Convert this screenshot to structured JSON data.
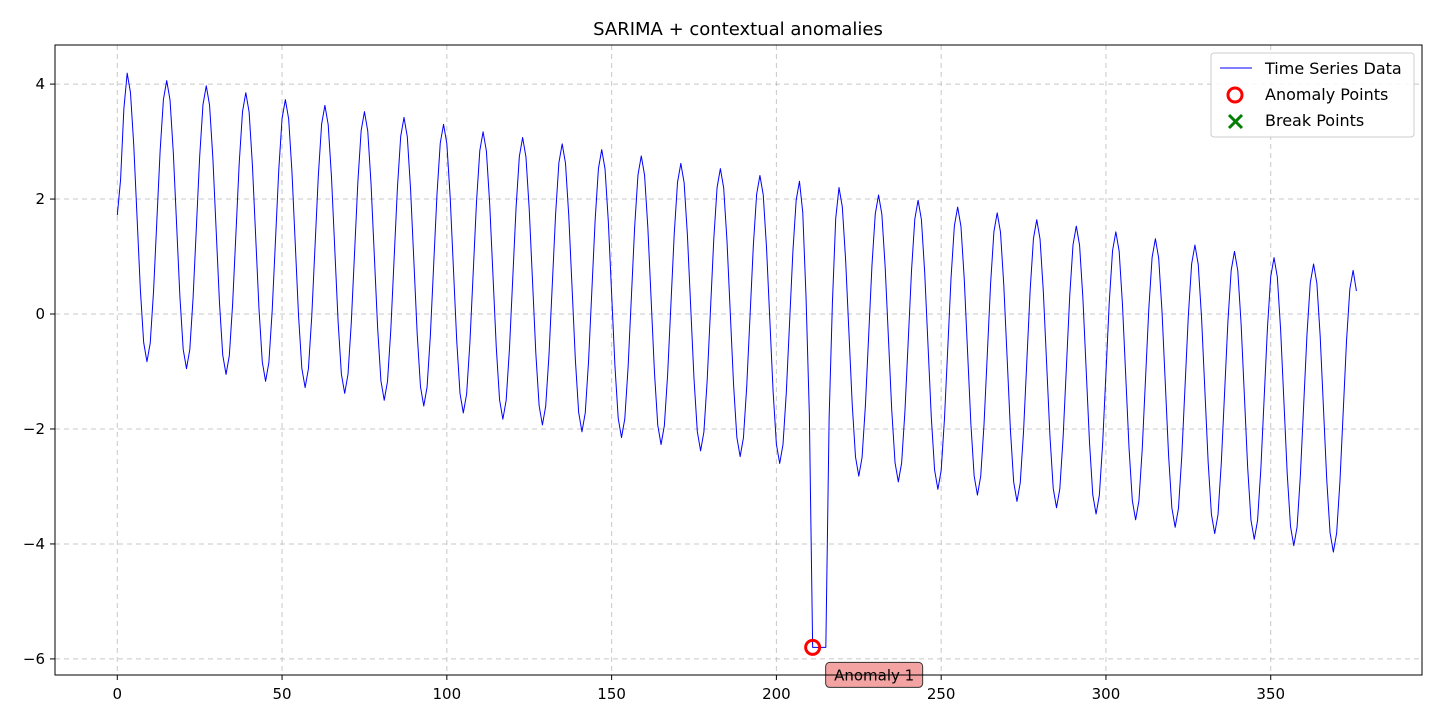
{
  "chart_data": {
    "type": "line",
    "title": "SARIMA + contextual anomalies",
    "xlabel": "",
    "ylabel": "",
    "xlim": [
      -18.9,
      395.9
    ],
    "ylim": [
      -6.28,
      4.68
    ],
    "x_ticks": [
      0,
      50,
      100,
      150,
      200,
      250,
      300,
      350
    ],
    "y_ticks": [
      4,
      2,
      0,
      -2,
      -4,
      -6
    ],
    "y_tick_labels": [
      "4",
      "2",
      "0",
      "−2",
      "−4",
      "−6"
    ],
    "grid": true,
    "legend_position": "upper right",
    "legend": [
      {
        "label": "Time Series Data",
        "marker": "line",
        "color": "#0000ff"
      },
      {
        "label": "Anomaly Points",
        "marker": "circle",
        "color": "#ff0000"
      },
      {
        "label": "Break Points",
        "marker": "x",
        "color": "#008000"
      }
    ],
    "series": [
      {
        "name": "Time Series Data",
        "color": "#0000ff",
        "n_points": 377,
        "period": 12,
        "peaks": [
          [
            3,
            4.19
          ],
          [
            15,
            4.06
          ],
          [
            27,
            3.97
          ],
          [
            39,
            3.85
          ],
          [
            51,
            3.73
          ],
          [
            63,
            3.63
          ],
          [
            75,
            3.52
          ],
          [
            87,
            3.42
          ],
          [
            99,
            3.3
          ],
          [
            111,
            3.17
          ],
          [
            123,
            3.07
          ],
          [
            135,
            2.96
          ],
          [
            147,
            2.86
          ],
          [
            159,
            2.75
          ],
          [
            171,
            2.62
          ],
          [
            183,
            2.53
          ],
          [
            195,
            2.41
          ],
          [
            207,
            2.31
          ],
          [
            219,
            2.2
          ],
          [
            231,
            2.07
          ],
          [
            243,
            1.98
          ],
          [
            255,
            1.86
          ],
          [
            267,
            1.76
          ],
          [
            279,
            1.64
          ],
          [
            291,
            1.53
          ],
          [
            303,
            1.43
          ],
          [
            315,
            1.31
          ],
          [
            327,
            1.2
          ],
          [
            339,
            1.09
          ],
          [
            351,
            0.98
          ],
          [
            363,
            0.87
          ],
          [
            375,
            0.76
          ]
        ],
        "troughs": [
          [
            9,
            -0.83
          ],
          [
            21,
            -0.95
          ],
          [
            33,
            -1.05
          ],
          [
            45,
            -1.17
          ],
          [
            57,
            -1.28
          ],
          [
            69,
            -1.38
          ],
          [
            81,
            -1.5
          ],
          [
            93,
            -1.6
          ],
          [
            105,
            -1.72
          ],
          [
            117,
            -1.83
          ],
          [
            129,
            -1.93
          ],
          [
            141,
            -2.05
          ],
          [
            153,
            -2.15
          ],
          [
            165,
            -2.27
          ],
          [
            177,
            -2.38
          ],
          [
            189,
            -2.48
          ],
          [
            201,
            -2.6
          ],
          [
            213,
            -5.8
          ],
          [
            225,
            -2.82
          ],
          [
            237,
            -2.92
          ],
          [
            249,
            -3.05
          ],
          [
            261,
            -3.15
          ],
          [
            273,
            -3.26
          ],
          [
            285,
            -3.37
          ],
          [
            297,
            -3.48
          ],
          [
            309,
            -3.58
          ],
          [
            321,
            -3.71
          ],
          [
            333,
            -3.82
          ],
          [
            345,
            -3.92
          ],
          [
            357,
            -4.03
          ],
          [
            369,
            -4.14
          ]
        ],
        "anomaly_plateau": {
          "x_start": 211,
          "x_end": 215,
          "y": -5.8
        },
        "first_point": [
          0,
          1.72
        ],
        "last_point": [
          376,
          0.4
        ]
      }
    ],
    "anomaly_points": [
      {
        "x": 211,
        "y": -5.8,
        "label": "Anomaly 1"
      }
    ],
    "break_points": []
  }
}
